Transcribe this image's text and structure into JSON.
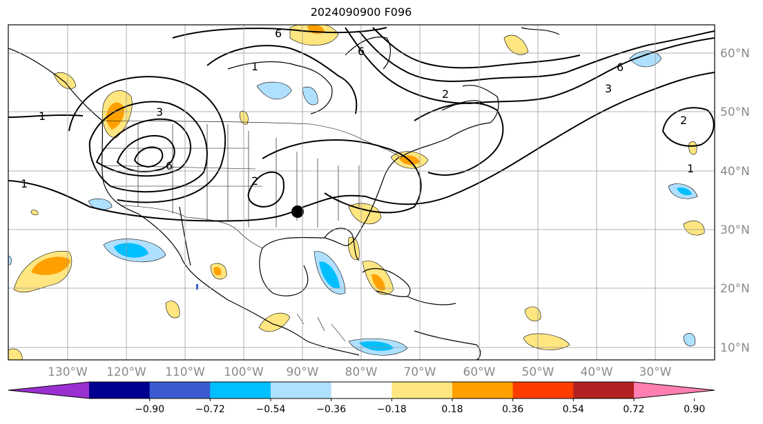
{
  "title": "2024090900 F096",
  "lon_labels": [
    "130°W",
    "120°W",
    "110°W",
    "100°W",
    "90°W",
    "80°W",
    "70°W",
    "60°W",
    "50°W",
    "40°W",
    "30°W"
  ],
  "lat_labels": [
    "60°N",
    "50°N",
    "40°N",
    "30°N",
    "20°N",
    "10°N"
  ],
  "colorbar": {
    "ticks": [
      "−0.90",
      "−0.72",
      "−0.54",
      "−0.36",
      "−0.18",
      "0.18",
      "0.36",
      "0.54",
      "0.72",
      "0.90"
    ],
    "colors": [
      "#9b30d0",
      "#000090",
      "#3a5bd0",
      "#00bfff",
      "#b0e0ff",
      "#ffffff",
      "#ffe680",
      "#ffa000",
      "#ff3c00",
      "#b22222",
      "#ff80b0"
    ]
  },
  "contour_labels": [
    "1",
    "1",
    "1",
    "1",
    "2",
    "2",
    "2",
    "3",
    "3",
    "6",
    "6",
    "6",
    "6"
  ],
  "marker": "storm-center-dot"
}
